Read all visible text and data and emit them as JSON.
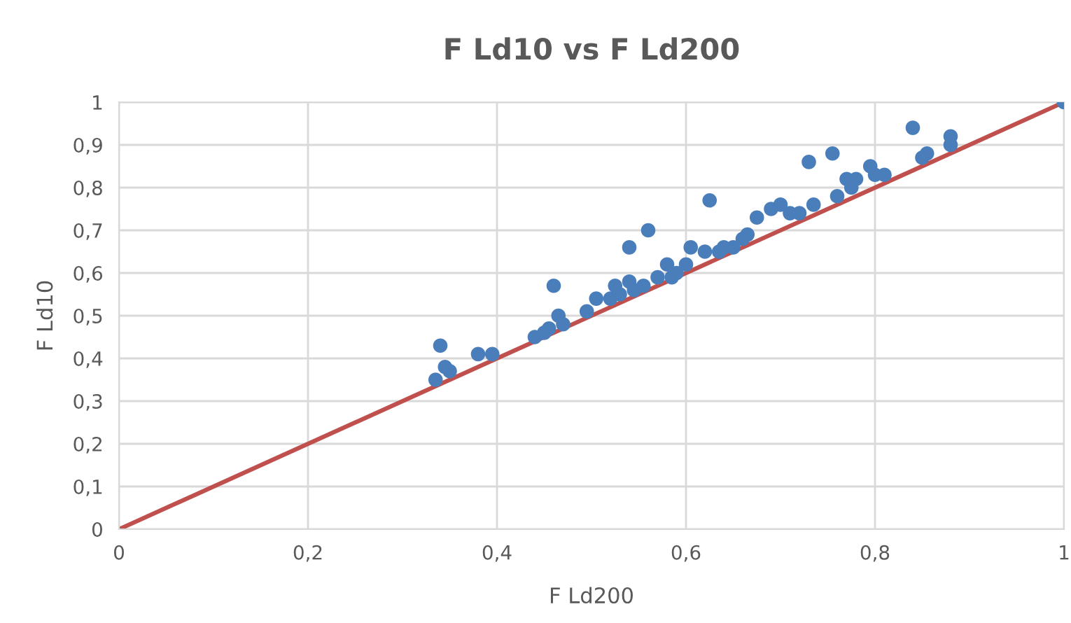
{
  "chart_data": {
    "type": "scatter",
    "title": "F Ld10 vs F Ld200",
    "xlabel": "F Ld200",
    "ylabel": "F Ld10",
    "xlim": [
      0,
      1
    ],
    "ylim": [
      0,
      1
    ],
    "xticks": [
      0,
      {
        "value": 0.2,
        "label": "0,2"
      },
      {
        "value": 0.4,
        "label": "0,4"
      },
      {
        "value": 0.6,
        "label": "0,6"
      },
      {
        "value": 0.8,
        "label": "0,8"
      },
      1
    ],
    "yticks": [
      0,
      {
        "value": 0.1,
        "label": "0,1"
      },
      {
        "value": 0.2,
        "label": "0,2"
      },
      {
        "value": 0.3,
        "label": "0,3"
      },
      {
        "value": 0.4,
        "label": "0,4"
      },
      {
        "value": 0.5,
        "label": "0,5"
      },
      {
        "value": 0.6,
        "label": "0,6"
      },
      {
        "value": 0.7,
        "label": "0,7"
      },
      {
        "value": 0.8,
        "label": "0,8"
      },
      {
        "value": 0.9,
        "label": "0,9"
      },
      1
    ],
    "grid": true,
    "legend": false,
    "marker": "circle",
    "series": [
      {
        "color": "#4a7ebb",
        "x": [
          0.335,
          0.34,
          0.345,
          0.35,
          0.38,
          0.395,
          0.44,
          0.45,
          0.455,
          0.46,
          0.465,
          0.47,
          0.495,
          0.505,
          0.52,
          0.525,
          0.53,
          0.54,
          0.54,
          0.545,
          0.555,
          0.56,
          0.57,
          0.58,
          0.585,
          0.59,
          0.6,
          0.605,
          0.62,
          0.625,
          0.635,
          0.64,
          0.65,
          0.66,
          0.665,
          0.675,
          0.69,
          0.7,
          0.71,
          0.72,
          0.73,
          0.735,
          0.755,
          0.76,
          0.77,
          0.775,
          0.78,
          0.795,
          0.8,
          0.81,
          0.84,
          0.85,
          0.855,
          0.88,
          0.88,
          1.0
        ],
        "values": [
          0.35,
          0.43,
          0.38,
          0.37,
          0.41,
          0.41,
          0.45,
          0.46,
          0.47,
          0.57,
          0.5,
          0.48,
          0.51,
          0.54,
          0.54,
          0.57,
          0.55,
          0.58,
          0.66,
          0.56,
          0.57,
          0.7,
          0.59,
          0.62,
          0.59,
          0.6,
          0.62,
          0.66,
          0.65,
          0.77,
          0.65,
          0.66,
          0.66,
          0.68,
          0.69,
          0.73,
          0.75,
          0.76,
          0.74,
          0.74,
          0.86,
          0.76,
          0.88,
          0.78,
          0.82,
          0.8,
          0.82,
          0.85,
          0.83,
          0.83,
          0.94,
          0.87,
          0.88,
          0.9,
          0.92,
          1.0
        ]
      },
      {
        "type": "line",
        "color": "#c0504d",
        "x": [
          0,
          1
        ],
        "values": [
          0,
          1
        ],
        "marker": "none",
        "line_style": "solid"
      }
    ]
  }
}
